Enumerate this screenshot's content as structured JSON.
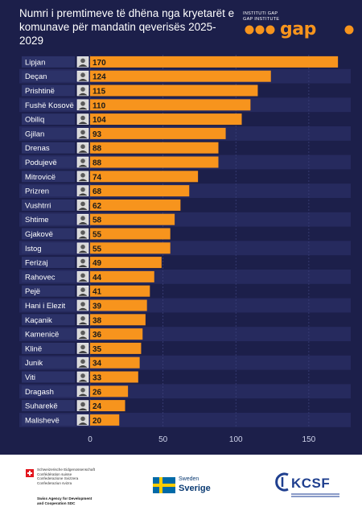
{
  "title": {
    "line1": "Numri i premtimeve të dhëna nga kryetarët e",
    "line2": "komunave për mandatin qeverisës 2025-2029"
  },
  "logo": {
    "small_line1": "INSTITUTI GAP",
    "small_line2": "GAP INSTITUTE",
    "text": "gap",
    "color": "#f7941d"
  },
  "chart_data": {
    "type": "bar",
    "orientation": "horizontal",
    "title": "Numri i premtimeve të dhëna nga kryetarët e komunave për mandatin qeverisës 2025-2029",
    "categories": [
      "Lipjan",
      "Deçan",
      "Prishtinë",
      "Fushë Kosovë",
      "Obiliq",
      "Gjilan",
      "Drenas",
      "Podujevë",
      "Mitrovicë",
      "Prizren",
      "Vushtrri",
      "Shtime",
      "Gjakovë",
      "Istog",
      "Ferizaj",
      "Rahovec",
      "Pejë",
      "Hani i Elezit",
      "Kaçanik",
      "Kamenicë",
      "Klinë",
      "Junik",
      "Viti",
      "Dragash",
      "Suharekë",
      "Malishevë"
    ],
    "values": [
      170,
      124,
      115,
      110,
      104,
      93,
      88,
      88,
      74,
      68,
      62,
      58,
      55,
      55,
      49,
      44,
      41,
      39,
      38,
      36,
      35,
      34,
      33,
      26,
      24,
      20
    ],
    "data_labels": [
      "170",
      "124",
      "115",
      "110",
      "104",
      "93",
      "88",
      "88",
      "74",
      "68",
      "62",
      "58",
      "55",
      "55",
      "49",
      "44",
      "41",
      "39",
      "38",
      "36",
      "35",
      "34",
      "33",
      "26",
      "24",
      "20"
    ],
    "x_ticks": [
      "0",
      "50",
      "100",
      "150"
    ],
    "x_tick_values": [
      0,
      50,
      100,
      150
    ],
    "xlim": [
      0,
      170
    ],
    "xlabel": "",
    "ylabel": "",
    "grid": true,
    "legend": "none",
    "bar_color": "#f7941d",
    "background_color": "#1c1f4a",
    "stripe_color": "#262a5e",
    "label_box_color": "#2c3268",
    "tick_color": "#cfd3ea"
  },
  "footer": {
    "sdc": {
      "line1": "Schweizerische Eidgenossenschaft",
      "line2": "Confédération suisse",
      "line3": "Confederazione Svizzera",
      "line4": "Confederaziun svizra",
      "bottom1": "Swiss Agency for Development",
      "bottom2": "and Cooperation SDC"
    },
    "sweden": {
      "line1": "Sweden",
      "line2": "Sverige"
    },
    "kcsf": {
      "text": "KCSF"
    }
  }
}
